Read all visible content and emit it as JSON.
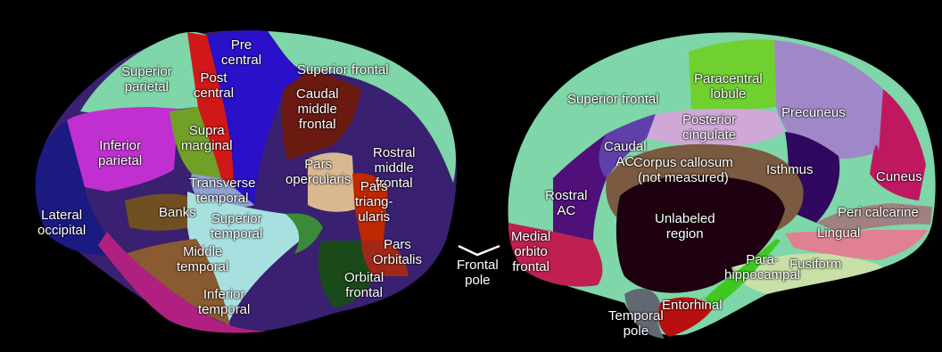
{
  "colors": {
    "background": "#000000",
    "superior_frontal": "#7fd6a8",
    "precentral": "#2a10c8",
    "postcentral": "#d01818",
    "caudal_middle_frontal": "#6a1a10",
    "rostral_middle_frontal": "#3a2070",
    "inferior_parietal": "#c030d0",
    "supramarginal": "#70a028",
    "lateral_occipital": "#1a1a80",
    "pars_opercularis": "#d8b890",
    "pars_triangularis": "#c02800",
    "pars_orbitalis": "#a02818",
    "orbital_frontal": "#1a4a1a",
    "transverse_temporal": "#90a0d0",
    "banks": "#705020",
    "superior_temporal": "#a8e0e0",
    "middle_temporal": "#8a5a30",
    "inferior_temporal": "#b02080",
    "paracentral": "#70d030",
    "posterior_cingulate": "#d0a8d8",
    "precuneus": "#a088c8",
    "caudal_ac": "#6040a8",
    "rostral_ac": "#50107a",
    "isthmus": "#300860",
    "cuneus": "#c01860",
    "corpus_callosum": "#7a5a40",
    "medial_orbitofrontal": "#c02050",
    "lingual": "#e08090",
    "pericalcarine": "#a08080",
    "fusiform": "#c8e0a8",
    "parahippocampal": "#40c820",
    "entorhinal": "#b81010",
    "temporal_pole": "#606870"
  },
  "lateral": {
    "superior_parietal": "Superior\nparietal",
    "precentral": "Pre\ncentral",
    "postcentral": "Post\ncentral",
    "superior_frontal": "Superior frontal",
    "caudal_middle_frontal": "Caudal\nmiddle\nfrontal",
    "supramarginal": "Supra\nmarginal",
    "inferior_parietal": "Inferior\nparietal",
    "rostral_middle_frontal": "Rostral\nmiddle\nfrontal",
    "pars_opercularis": "Pars\nopercularis",
    "pars_triangularis": "Pars\ntriang-\nularis",
    "transverse_temporal": "Transverse\ntemporal",
    "banks": "Banks",
    "superior_temporal": "Superior\ntemporal",
    "lateral_occipital": "Lateral\noccipital",
    "pars_orbitalis": "Pars\nOrbitalis",
    "middle_temporal": "Middle\ntemporal",
    "orbital_frontal": "Orbital\nfrontal",
    "inferior_temporal": "Inferior\ntemporal"
  },
  "frontal_pole": "Frontal\npole",
  "medial": {
    "paracentral": "Paracentral\nlobule",
    "superior_frontal": "Superior frontal",
    "precuneus": "Precuneus",
    "posterior_cingulate": "Posterior\ncingulate",
    "caudal_ac": "Caudal\nAC",
    "corpus_callosum": "Corpus callosum\n(not measured)",
    "isthmus": "Isthmus",
    "cuneus": "Cuneus",
    "rostral_ac": "Rostral\nAC",
    "unlabeled": "Unlabeled\nregion",
    "pericalcarine": "Peri calcarine",
    "lingual": "Lingual",
    "medial_orbitofrontal": "Medial\norbito\nfrontal",
    "parahippocampal": "Para-\nhippocampal",
    "fusiform": "Fusiform",
    "entorhinal": "Entorhinal",
    "temporal_pole": "Temporal\npole"
  }
}
